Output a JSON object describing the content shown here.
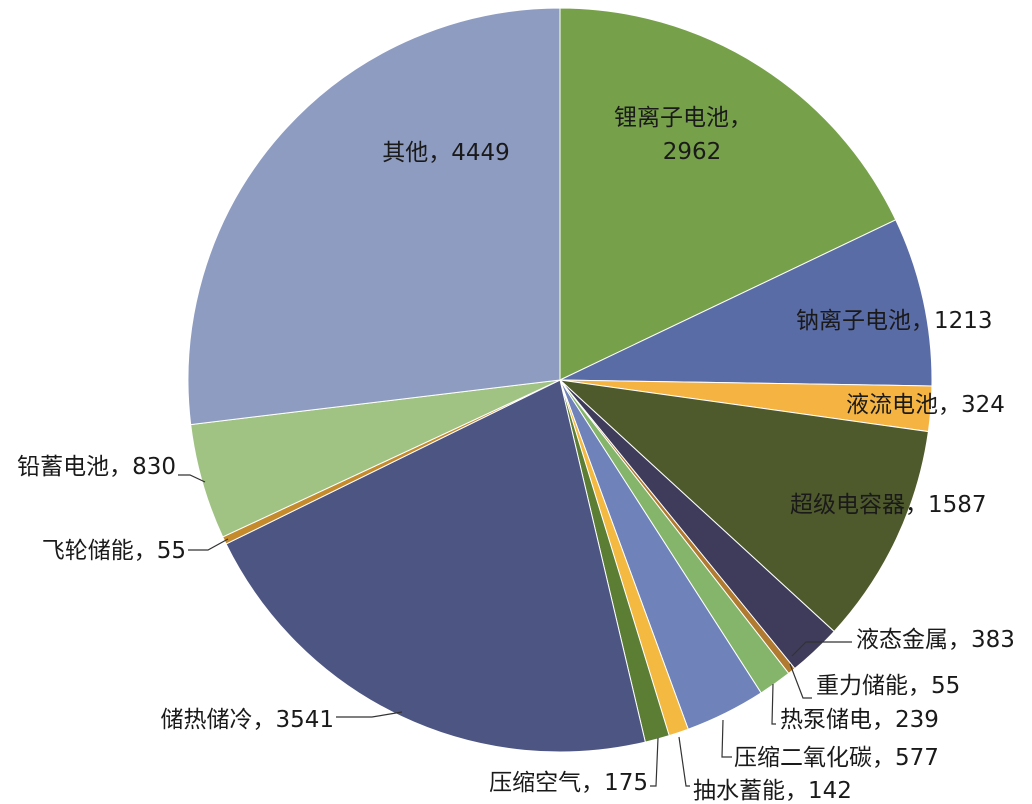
{
  "chart_data": {
    "type": "pie",
    "title": "",
    "start_angle": "12 o'clock",
    "direction": "clockwise",
    "slices": [
      {
        "label": "锂离子电池",
        "value": 2962,
        "color": "#77a04a",
        "text": "锂离子电池，",
        "text2": "2962"
      },
      {
        "label": "钠离子电池",
        "value": 1213,
        "color": "#5a6ca6",
        "text": "钠离子电池，1213"
      },
      {
        "label": "液流电池",
        "value": 324,
        "color": "#f5b342",
        "text": "液流电池，324"
      },
      {
        "label": "超级电容器",
        "value": 1587,
        "color": "#4e5a2c",
        "text": "超级电容器，1587"
      },
      {
        "label": "液态金属",
        "value": 383,
        "color": "#3e3c5a",
        "text": "液态金属，383"
      },
      {
        "label": "重力储能",
        "value": 55,
        "color": "#b07a30",
        "text": "重力储能，55"
      },
      {
        "label": "热泵储电",
        "value": 239,
        "color": "#84b56a",
        "text": "热泵储电，239"
      },
      {
        "label": "压缩二氧化碳",
        "value": 577,
        "color": "#6f83ba",
        "text": "压缩二氧化碳，577"
      },
      {
        "label": "抽水蓄能",
        "value": 142,
        "color": "#f4b940",
        "text": "抽水蓄能，142"
      },
      {
        "label": "压缩空气",
        "value": 175,
        "color": "#5b7d34",
        "text": "压缩空气，175"
      },
      {
        "label": "储热储冷",
        "value": 3541,
        "color": "#4d5583",
        "text": "储热储冷，3541"
      },
      {
        "label": "飞轮储能",
        "value": 55,
        "color": "#c48a2c",
        "text": "飞轮储能，55"
      },
      {
        "label": "铅蓄电池",
        "value": 830,
        "color": "#a0c384",
        "text": "铅蓄电池，830"
      },
      {
        "label": "其他",
        "value": 4449,
        "color": "#8e9cc2",
        "text": "其他，4449"
      }
    ]
  }
}
